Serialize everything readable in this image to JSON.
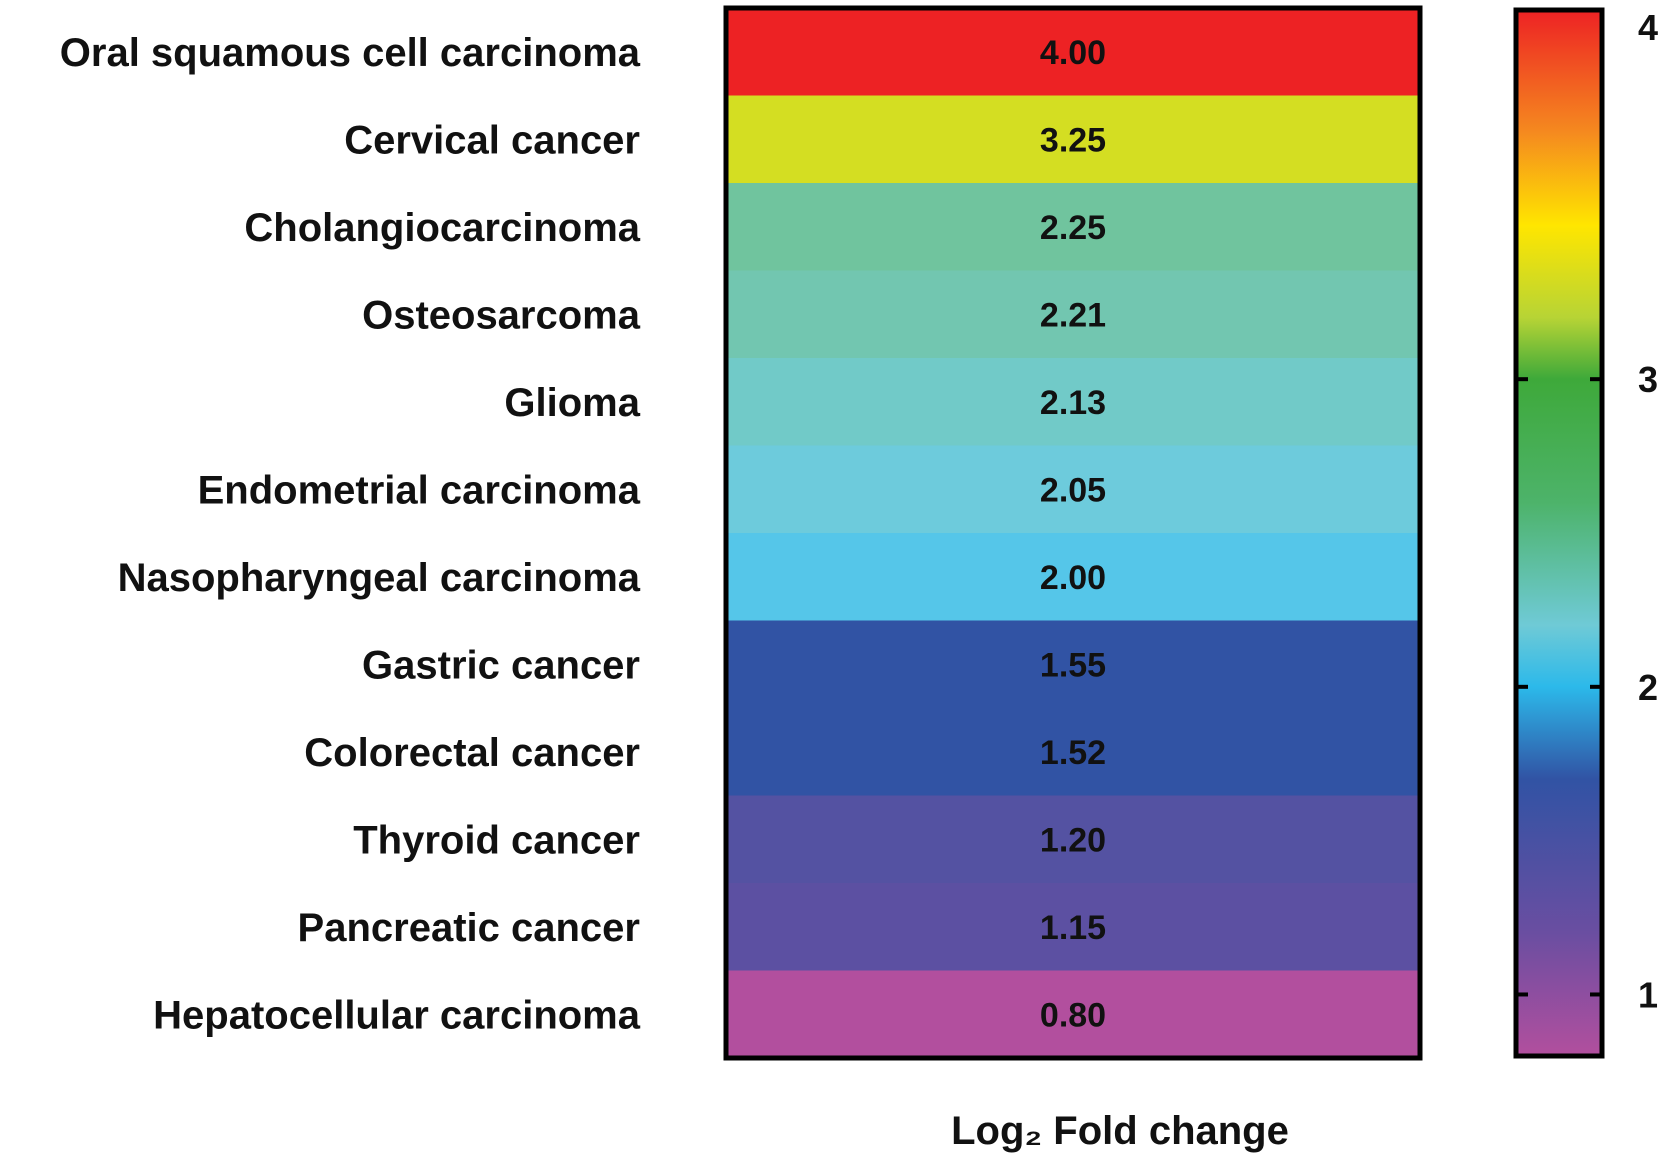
{
  "chart_data": {
    "type": "heatmap",
    "title": "",
    "xlabel": "Log₂ Fold change",
    "ylabel": "",
    "rows": [
      {
        "label": "Oral squamous cell carcinoma",
        "value": 4.0,
        "value_text": "4.00",
        "color": "#ed2224"
      },
      {
        "label": "Cervical cancer",
        "value": 3.25,
        "value_text": "3.25",
        "color": "#d4de22"
      },
      {
        "label": "Cholangiocarcinoma",
        "value": 2.25,
        "value_text": "2.25",
        "color": "#70c49e"
      },
      {
        "label": "Osteosarcoma",
        "value": 2.21,
        "value_text": "2.21",
        "color": "#72c6b0"
      },
      {
        "label": "Glioma",
        "value": 2.13,
        "value_text": "2.13",
        "color": "#71cac8"
      },
      {
        "label": "Endometrial carcinoma",
        "value": 2.05,
        "value_text": "2.05",
        "color": "#6dcbdc"
      },
      {
        "label": "Nasopharyngeal carcinoma",
        "value": 2.0,
        "value_text": "2.00",
        "color": "#55c6e9"
      },
      {
        "label": "Gastric cancer",
        "value": 1.55,
        "value_text": "1.55",
        "color": "#3153a4"
      },
      {
        "label": "Colorectal cancer",
        "value": 1.52,
        "value_text": "1.52",
        "color": "#3153a4"
      },
      {
        "label": "Thyroid cancer",
        "value": 1.2,
        "value_text": "1.20",
        "color": "#5452a2"
      },
      {
        "label": "Pancreatic cancer",
        "value": 1.15,
        "value_text": "1.15",
        "color": "#5c50a2"
      },
      {
        "label": "Hepatocellular carcinoma",
        "value": 0.8,
        "value_text": "0.80",
        "color": "#b24f9e"
      }
    ],
    "colorbar": {
      "range": [
        0.8,
        4.2
      ],
      "ticks": [
        1,
        2,
        3,
        4
      ],
      "tick_labels": [
        "1",
        "2",
        "3",
        "4"
      ],
      "stops": [
        {
          "value": 0.8,
          "color": "#b24f9e"
        },
        {
          "value": 1.2,
          "color": "#6a4ea1"
        },
        {
          "value": 1.7,
          "color": "#3153a4"
        },
        {
          "value": 2.0,
          "color": "#2cb9ea"
        },
        {
          "value": 2.2,
          "color": "#6fcad6"
        },
        {
          "value": 2.6,
          "color": "#4db36a"
        },
        {
          "value": 3.0,
          "color": "#3ea93a"
        },
        {
          "value": 3.2,
          "color": "#b7d435"
        },
        {
          "value": 3.5,
          "color": "#ffe600"
        },
        {
          "value": 3.8,
          "color": "#f58a1f"
        },
        {
          "value": 4.2,
          "color": "#ed2224"
        }
      ]
    }
  }
}
